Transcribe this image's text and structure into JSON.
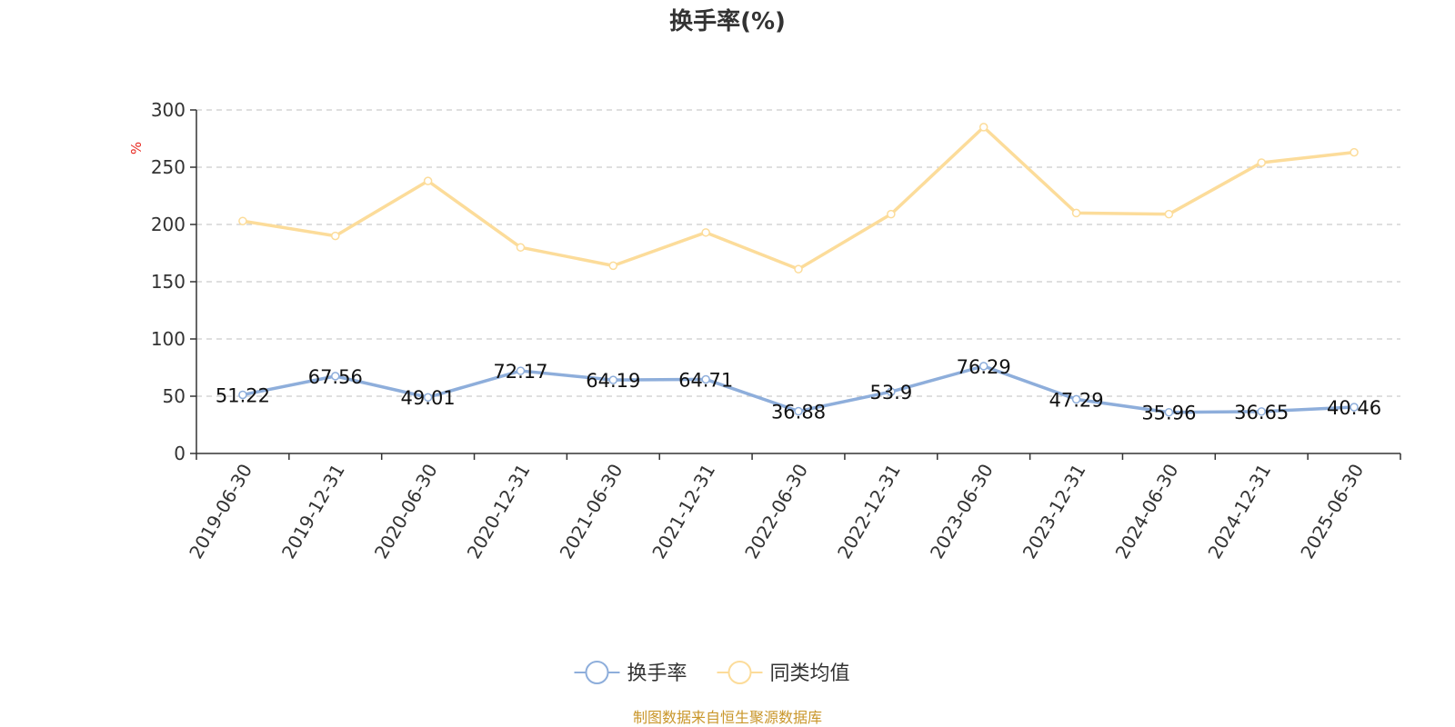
{
  "chart_data": {
    "type": "line",
    "title": "换手率(%)",
    "ylabel": "%",
    "xlabel": "",
    "ylim": [
      0,
      300
    ],
    "yticks": [
      0,
      50,
      100,
      150,
      200,
      250,
      300
    ],
    "grid": true,
    "legend_position": "bottom-center",
    "categories": [
      "2019-06-30",
      "2019-12-31",
      "2020-06-30",
      "2020-12-31",
      "2021-06-30",
      "2021-12-31",
      "2022-06-30",
      "2022-12-31",
      "2023-06-30",
      "2023-12-31",
      "2024-06-30",
      "2024-12-31",
      "2025-06-30"
    ],
    "series": [
      {
        "name": "换手率",
        "color": "#8eaedb",
        "show_labels": true,
        "values": [
          51.22,
          67.56,
          49.01,
          72.17,
          64.19,
          64.71,
          36.88,
          53.9,
          76.29,
          47.29,
          35.96,
          36.65,
          40.46
        ]
      },
      {
        "name": "同类均值",
        "color": "#fcdc9a",
        "show_labels": false,
        "values": [
          203,
          190,
          238,
          180,
          164,
          193,
          161,
          209,
          285,
          210,
          209,
          254,
          263
        ]
      }
    ],
    "source": "制图数据来自恒生聚源数据库",
    "colors": {
      "unit": "#e8271f",
      "source": "#c9962a",
      "grid": "#cccccc",
      "axis": "#333333"
    }
  }
}
